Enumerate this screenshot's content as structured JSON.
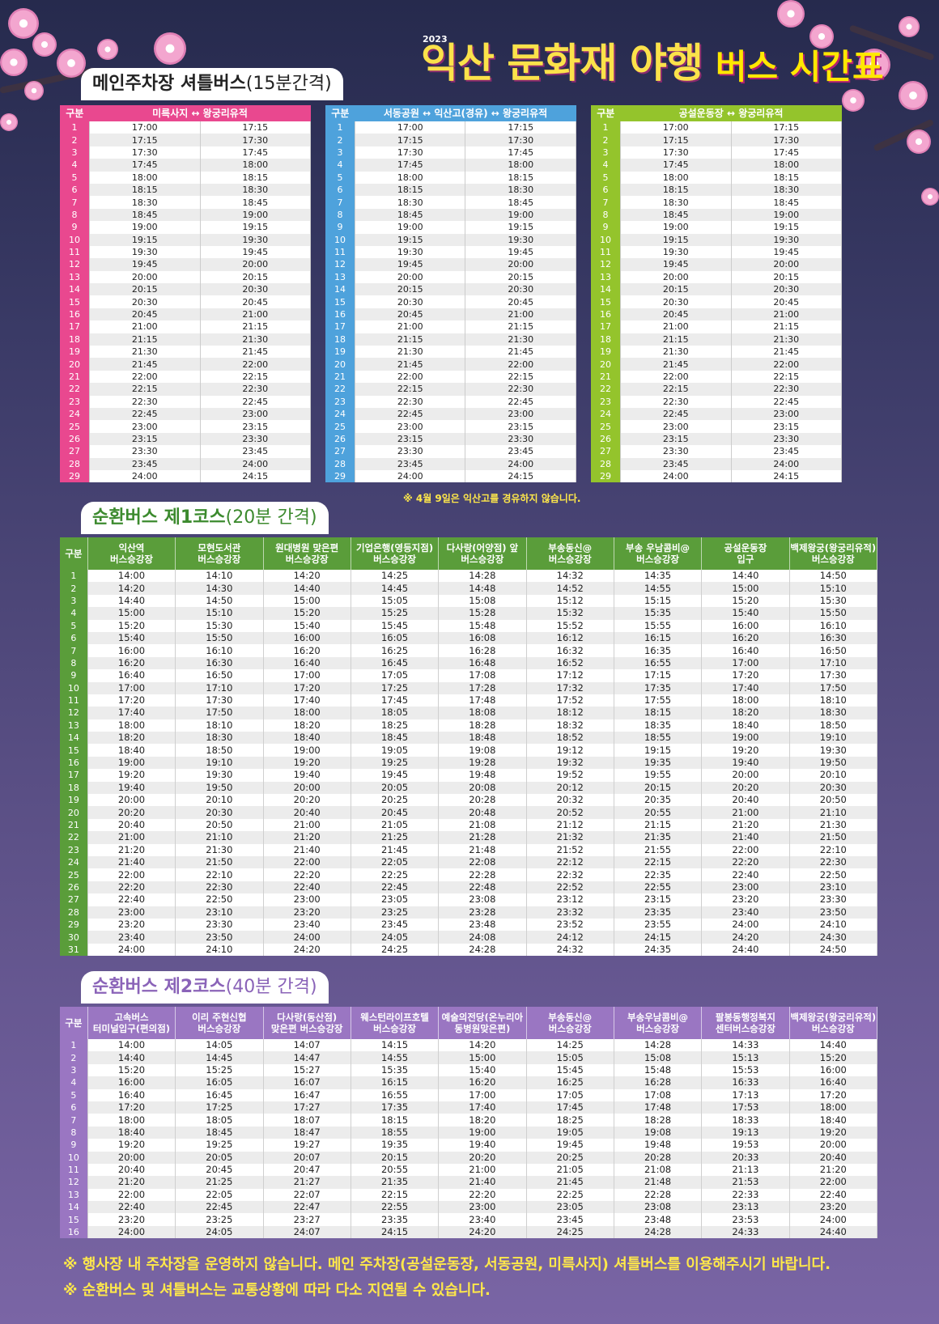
{
  "header": {
    "year": "2023",
    "title": "익산 문화재 야행",
    "subtitle": "버스 시간표"
  },
  "colors": {
    "pink": "#e9488f",
    "blue": "#4ea2dc",
    "lime": "#94c42c",
    "green": "#5a9d3a",
    "purple": "#9a76c2"
  },
  "shuttle": {
    "tab_main": "메인주차장 셔틀버스",
    "tab_sub": "(15분간격)",
    "col_label": "구분",
    "routes": [
      "미륵사지 ↔ 왕궁리유적",
      "서동공원 ↔ 익산고(경유) ↔ 왕궁리유적",
      "공설운동장 ↔ 왕궁리유적"
    ],
    "rows": [
      [
        "1",
        "17:00",
        "17:15"
      ],
      [
        "2",
        "17:15",
        "17:30"
      ],
      [
        "3",
        "17:30",
        "17:45"
      ],
      [
        "4",
        "17:45",
        "18:00"
      ],
      [
        "5",
        "18:00",
        "18:15"
      ],
      [
        "6",
        "18:15",
        "18:30"
      ],
      [
        "7",
        "18:30",
        "18:45"
      ],
      [
        "8",
        "18:45",
        "19:00"
      ],
      [
        "9",
        "19:00",
        "19:15"
      ],
      [
        "10",
        "19:15",
        "19:30"
      ],
      [
        "11",
        "19:30",
        "19:45"
      ],
      [
        "12",
        "19:45",
        "20:00"
      ],
      [
        "13",
        "20:00",
        "20:15"
      ],
      [
        "14",
        "20:15",
        "20:30"
      ],
      [
        "15",
        "20:30",
        "20:45"
      ],
      [
        "16",
        "20:45",
        "21:00"
      ],
      [
        "17",
        "21:00",
        "21:15"
      ],
      [
        "18",
        "21:15",
        "21:30"
      ],
      [
        "19",
        "21:30",
        "21:45"
      ],
      [
        "20",
        "21:45",
        "22:00"
      ],
      [
        "21",
        "22:00",
        "22:15"
      ],
      [
        "22",
        "22:15",
        "22:30"
      ],
      [
        "23",
        "22:30",
        "22:45"
      ],
      [
        "24",
        "22:45",
        "23:00"
      ],
      [
        "25",
        "23:00",
        "23:15"
      ],
      [
        "26",
        "23:15",
        "23:30"
      ],
      [
        "27",
        "23:30",
        "23:45"
      ],
      [
        "28",
        "23:45",
        "24:00"
      ],
      [
        "29",
        "24:00",
        "24:15"
      ]
    ],
    "note": "※ 4월 9일은 익산고를 경유하지 않습니다."
  },
  "course1": {
    "tab_main": "순환버스 제1코스",
    "tab_sub": "(20분 간격)",
    "headers": [
      "구분",
      "익산역\n버스승강장",
      "모현도서관\n버스승강장",
      "원대병원 맞은편\n버스승강장",
      "기업은행(영등지점)\n버스승강장",
      "다사랑(어양점) 앞\n버스승강장",
      "부송동신@\n버스승강장",
      "부송 우남콤비@\n버스승강장",
      "공설운동장\n입구",
      "백제왕궁(왕궁리유적)\n버스승강장"
    ],
    "rows": [
      [
        "1",
        "14:00",
        "14:10",
        "14:20",
        "14:25",
        "14:28",
        "14:32",
        "14:35",
        "14:40",
        "14:50"
      ],
      [
        "2",
        "14:20",
        "14:30",
        "14:40",
        "14:45",
        "14:48",
        "14:52",
        "14:55",
        "15:00",
        "15:10"
      ],
      [
        "3",
        "14:40",
        "14:50",
        "15:00",
        "15:05",
        "15:08",
        "15:12",
        "15:15",
        "15:20",
        "15:30"
      ],
      [
        "4",
        "15:00",
        "15:10",
        "15:20",
        "15:25",
        "15:28",
        "15:32",
        "15:35",
        "15:40",
        "15:50"
      ],
      [
        "5",
        "15:20",
        "15:30",
        "15:40",
        "15:45",
        "15:48",
        "15:52",
        "15:55",
        "16:00",
        "16:10"
      ],
      [
        "6",
        "15:40",
        "15:50",
        "16:00",
        "16:05",
        "16:08",
        "16:12",
        "16:15",
        "16:20",
        "16:30"
      ],
      [
        "7",
        "16:00",
        "16:10",
        "16:20",
        "16:25",
        "16:28",
        "16:32",
        "16:35",
        "16:40",
        "16:50"
      ],
      [
        "8",
        "16:20",
        "16:30",
        "16:40",
        "16:45",
        "16:48",
        "16:52",
        "16:55",
        "17:00",
        "17:10"
      ],
      [
        "9",
        "16:40",
        "16:50",
        "17:00",
        "17:05",
        "17:08",
        "17:12",
        "17:15",
        "17:20",
        "17:30"
      ],
      [
        "10",
        "17:00",
        "17:10",
        "17:20",
        "17:25",
        "17:28",
        "17:32",
        "17:35",
        "17:40",
        "17:50"
      ],
      [
        "11",
        "17:20",
        "17:30",
        "17:40",
        "17:45",
        "17:48",
        "17:52",
        "17:55",
        "18:00",
        "18:10"
      ],
      [
        "12",
        "17:40",
        "17:50",
        "18:00",
        "18:05",
        "18:08",
        "18:12",
        "18:15",
        "18:20",
        "18:30"
      ],
      [
        "13",
        "18:00",
        "18:10",
        "18:20",
        "18:25",
        "18:28",
        "18:32",
        "18:35",
        "18:40",
        "18:50"
      ],
      [
        "14",
        "18:20",
        "18:30",
        "18:40",
        "18:45",
        "18:48",
        "18:52",
        "18:55",
        "19:00",
        "19:10"
      ],
      [
        "15",
        "18:40",
        "18:50",
        "19:00",
        "19:05",
        "19:08",
        "19:12",
        "19:15",
        "19:20",
        "19:30"
      ],
      [
        "16",
        "19:00",
        "19:10",
        "19:20",
        "19:25",
        "19:28",
        "19:32",
        "19:35",
        "19:40",
        "19:50"
      ],
      [
        "17",
        "19:20",
        "19:30",
        "19:40",
        "19:45",
        "19:48",
        "19:52",
        "19:55",
        "20:00",
        "20:10"
      ],
      [
        "18",
        "19:40",
        "19:50",
        "20:00",
        "20:05",
        "20:08",
        "20:12",
        "20:15",
        "20:20",
        "20:30"
      ],
      [
        "19",
        "20:00",
        "20:10",
        "20:20",
        "20:25",
        "20:28",
        "20:32",
        "20:35",
        "20:40",
        "20:50"
      ],
      [
        "20",
        "20:20",
        "20:30",
        "20:40",
        "20:45",
        "20:48",
        "20:52",
        "20:55",
        "21:00",
        "21:10"
      ],
      [
        "21",
        "20:40",
        "20:50",
        "21:00",
        "21:05",
        "21:08",
        "21:12",
        "21:15",
        "21:20",
        "21:30"
      ],
      [
        "22",
        "21:00",
        "21:10",
        "21:20",
        "21:25",
        "21:28",
        "21:32",
        "21:35",
        "21:40",
        "21:50"
      ],
      [
        "23",
        "21:20",
        "21:30",
        "21:40",
        "21:45",
        "21:48",
        "21:52",
        "21:55",
        "22:00",
        "22:10"
      ],
      [
        "24",
        "21:40",
        "21:50",
        "22:00",
        "22:05",
        "22:08",
        "22:12",
        "22:15",
        "22:20",
        "22:30"
      ],
      [
        "25",
        "22:00",
        "22:10",
        "22:20",
        "22:25",
        "22:28",
        "22:32",
        "22:35",
        "22:40",
        "22:50"
      ],
      [
        "26",
        "22:20",
        "22:30",
        "22:40",
        "22:45",
        "22:48",
        "22:52",
        "22:55",
        "23:00",
        "23:10"
      ],
      [
        "27",
        "22:40",
        "22:50",
        "23:00",
        "23:05",
        "23:08",
        "23:12",
        "23:15",
        "23:20",
        "23:30"
      ],
      [
        "28",
        "23:00",
        "23:10",
        "23:20",
        "23:25",
        "23:28",
        "23:32",
        "23:35",
        "23:40",
        "23:50"
      ],
      [
        "29",
        "23:20",
        "23:30",
        "23:40",
        "23:45",
        "23:48",
        "23:52",
        "23:55",
        "24:00",
        "24:10"
      ],
      [
        "30",
        "23:40",
        "23:50",
        "24:00",
        "24:05",
        "24:08",
        "24:12",
        "24:15",
        "24:20",
        "24:30"
      ],
      [
        "31",
        "24:00",
        "24:10",
        "24:20",
        "24:25",
        "24:28",
        "24:32",
        "24:35",
        "24:40",
        "24:50"
      ]
    ]
  },
  "course2": {
    "tab_main": "순환버스 제2코스",
    "tab_sub": "(40분 간격)",
    "headers": [
      "구분",
      "고속버스\n터미널입구(편의점)",
      "이리 주현신협\n버스승강장",
      "다사랑(동산점)\n맞은편 버스승강장",
      "웨스턴라이프호텔\n버스승강장",
      "예술의전당(온누리아\n동병원맞은편)",
      "부송동신@\n버스승강장",
      "부송우남콤비@\n버스승강장",
      "팔봉동행정복지\n센터버스승강장",
      "백제왕궁(왕궁리유적)\n버스승강장"
    ],
    "rows": [
      [
        "1",
        "14:00",
        "14:05",
        "14:07",
        "14:15",
        "14:20",
        "14:25",
        "14:28",
        "14:33",
        "14:40"
      ],
      [
        "2",
        "14:40",
        "14:45",
        "14:47",
        "14:55",
        "15:00",
        "15:05",
        "15:08",
        "15:13",
        "15:20"
      ],
      [
        "3",
        "15:20",
        "15:25",
        "15:27",
        "15:35",
        "15:40",
        "15:45",
        "15:48",
        "15:53",
        "16:00"
      ],
      [
        "4",
        "16:00",
        "16:05",
        "16:07",
        "16:15",
        "16:20",
        "16:25",
        "16:28",
        "16:33",
        "16:40"
      ],
      [
        "5",
        "16:40",
        "16:45",
        "16:47",
        "16:55",
        "17:00",
        "17:05",
        "17:08",
        "17:13",
        "17:20"
      ],
      [
        "6",
        "17:20",
        "17:25",
        "17:27",
        "17:35",
        "17:40",
        "17:45",
        "17:48",
        "17:53",
        "18:00"
      ],
      [
        "7",
        "18:00",
        "18:05",
        "18:07",
        "18:15",
        "18:20",
        "18:25",
        "18:28",
        "18:33",
        "18:40"
      ],
      [
        "8",
        "18:40",
        "18:45",
        "18:47",
        "18:55",
        "19:00",
        "19:05",
        "19:08",
        "19:13",
        "19:20"
      ],
      [
        "9",
        "19:20",
        "19:25",
        "19:27",
        "19:35",
        "19:40",
        "19:45",
        "19:48",
        "19:53",
        "20:00"
      ],
      [
        "10",
        "20:00",
        "20:05",
        "20:07",
        "20:15",
        "20:20",
        "20:25",
        "20:28",
        "20:33",
        "20:40"
      ],
      [
        "11",
        "20:40",
        "20:45",
        "20:47",
        "20:55",
        "21:00",
        "21:05",
        "21:08",
        "21:13",
        "21:20"
      ],
      [
        "12",
        "21:20",
        "21:25",
        "21:27",
        "21:35",
        "21:40",
        "21:45",
        "21:48",
        "21:53",
        "22:00"
      ],
      [
        "13",
        "22:00",
        "22:05",
        "22:07",
        "22:15",
        "22:20",
        "22:25",
        "22:28",
        "22:33",
        "22:40"
      ],
      [
        "14",
        "22:40",
        "22:45",
        "22:47",
        "22:55",
        "23:00",
        "23:05",
        "23:08",
        "23:13",
        "23:20"
      ],
      [
        "15",
        "23:20",
        "23:25",
        "23:27",
        "23:35",
        "23:40",
        "23:45",
        "23:48",
        "23:53",
        "24:00"
      ],
      [
        "16",
        "24:00",
        "24:05",
        "24:07",
        "24:15",
        "24:20",
        "24:25",
        "24:28",
        "24:33",
        "24:40"
      ]
    ]
  },
  "footer": {
    "note1": "※ 행사장 내 주차장을 운영하지 않습니다. 메인 주차장(공설운동장, 서동공원, 미륵사지) 셔틀버스를 이용해주시기 바랍니다.",
    "note2": "※ 순환버스 및 셔틀버스는 교통상황에 따라 다소 지연될 수 있습니다."
  }
}
